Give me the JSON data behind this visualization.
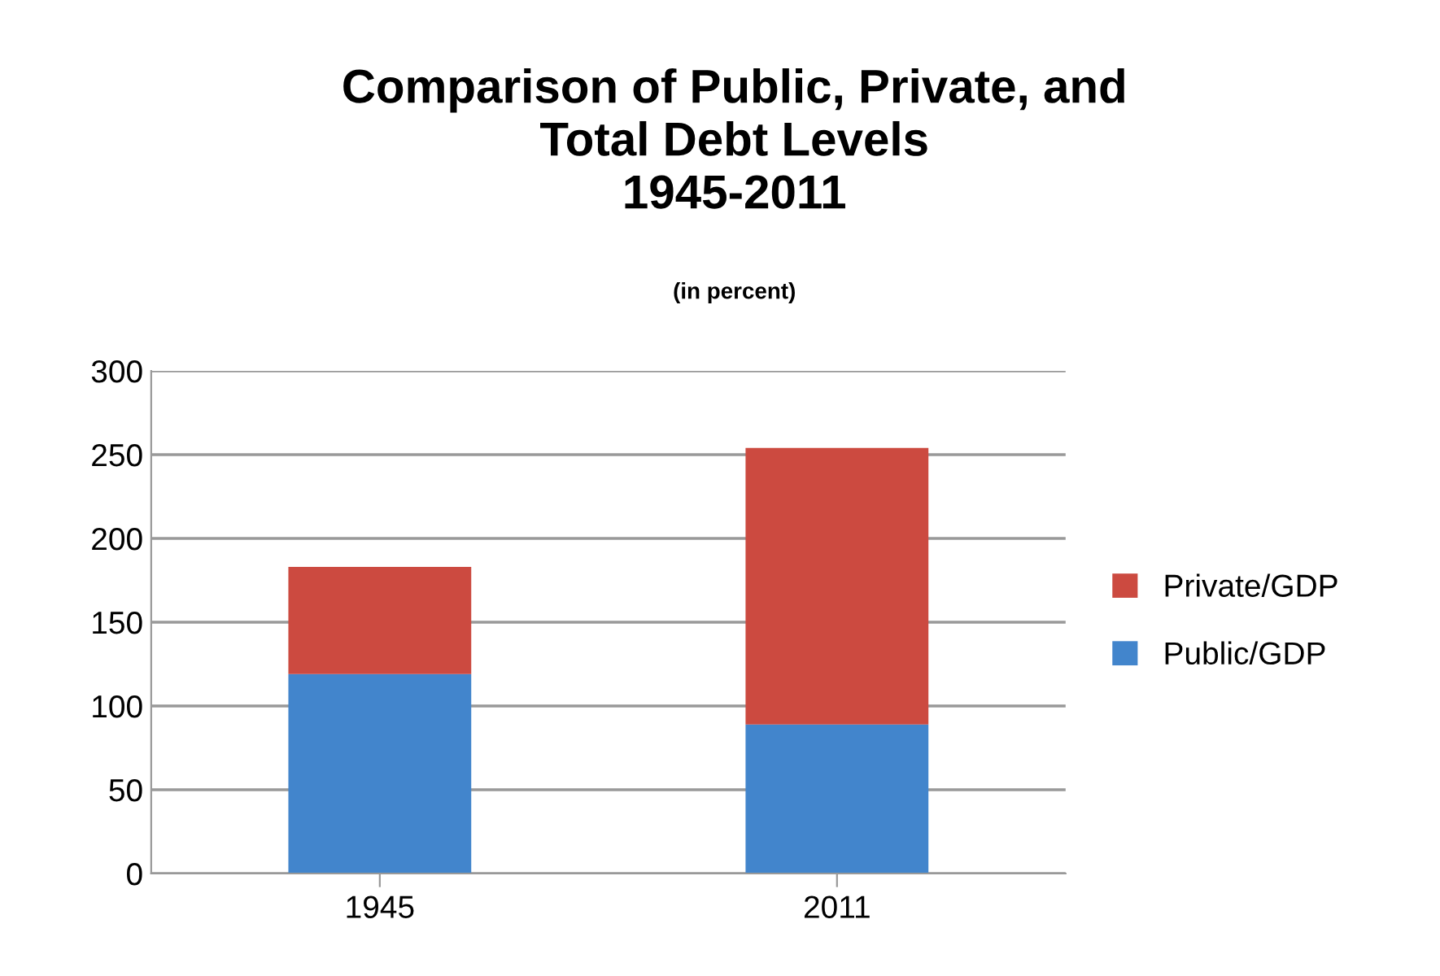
{
  "chart_data": {
    "type": "bar",
    "title": "Comparison of Public, Private, and\nTotal Debt Levels\n1945-2011",
    "subtitle": "(in percent)",
    "categories": [
      "1945",
      "2011"
    ],
    "stacked": true,
    "series": [
      {
        "name": "Public/GDP",
        "color": "#4285cc",
        "values": [
          119,
          89
        ]
      },
      {
        "name": "Private/GDP",
        "color": "#cc4a40",
        "values": [
          64,
          165
        ]
      }
    ],
    "ylim": [
      0,
      300
    ],
    "yticks": [
      0,
      50,
      100,
      150,
      200,
      250,
      300
    ],
    "grid": "y",
    "legend": "right"
  }
}
